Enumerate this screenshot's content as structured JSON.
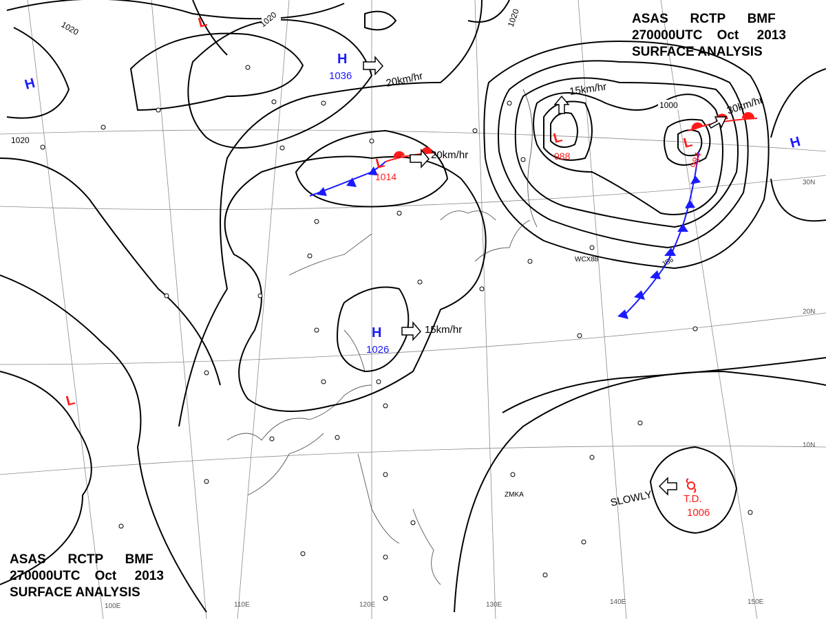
{
  "header": {
    "agency": [
      "ASAS",
      "RCTP",
      "BMF"
    ],
    "time": [
      "270000UTC",
      "Oct",
      "2013"
    ],
    "product": "SURFACE ANALYSIS"
  },
  "isobars": {
    "labels": [
      "1020",
      "1020",
      "1020",
      "1020",
      "1000"
    ]
  },
  "systems": [
    {
      "kind": "H",
      "pressure": "1036",
      "color": "#1a1aff"
    },
    {
      "kind": "L",
      "pressure": "1014",
      "color": "#ff1a1a"
    },
    {
      "kind": "H",
      "pressure": "1026",
      "color": "#1a1aff"
    },
    {
      "kind": "L",
      "pressure": "988",
      "color": "#ff1a1a"
    },
    {
      "kind": "L",
      "pressure": "984",
      "color": "#ff1a1a"
    },
    {
      "kind": "H",
      "pressure": "",
      "color": "#1a1aff"
    },
    {
      "kind": "H",
      "pressure": "",
      "color": "#1a1aff"
    },
    {
      "kind": "L",
      "pressure": "",
      "color": "#ff1a1a"
    },
    {
      "kind": "L",
      "pressure": "",
      "color": "#ff1a1a"
    }
  ],
  "tropical_depression": {
    "label": "T.D.",
    "pressure": "1006",
    "movement": "SLOWLY"
  },
  "movements": [
    "20km/hr",
    "20km/hr",
    "15km/hr",
    "15km/hr",
    "30km/hr"
  ],
  "grid_labels": {
    "lon": [
      "110E",
      "120E",
      "130E",
      "140E",
      "150E",
      "100E"
    ],
    "lat": [
      "30N",
      "20N",
      "10N"
    ]
  },
  "station_codes": [
    "WCX88",
    "JS6",
    "ZMKA"
  ],
  "colors": {
    "high": "#1a1aff",
    "low": "#ff1a1a",
    "cold_front": "#1a1aff",
    "warm_front": "#ff1a1a",
    "isobar": "#000000"
  }
}
